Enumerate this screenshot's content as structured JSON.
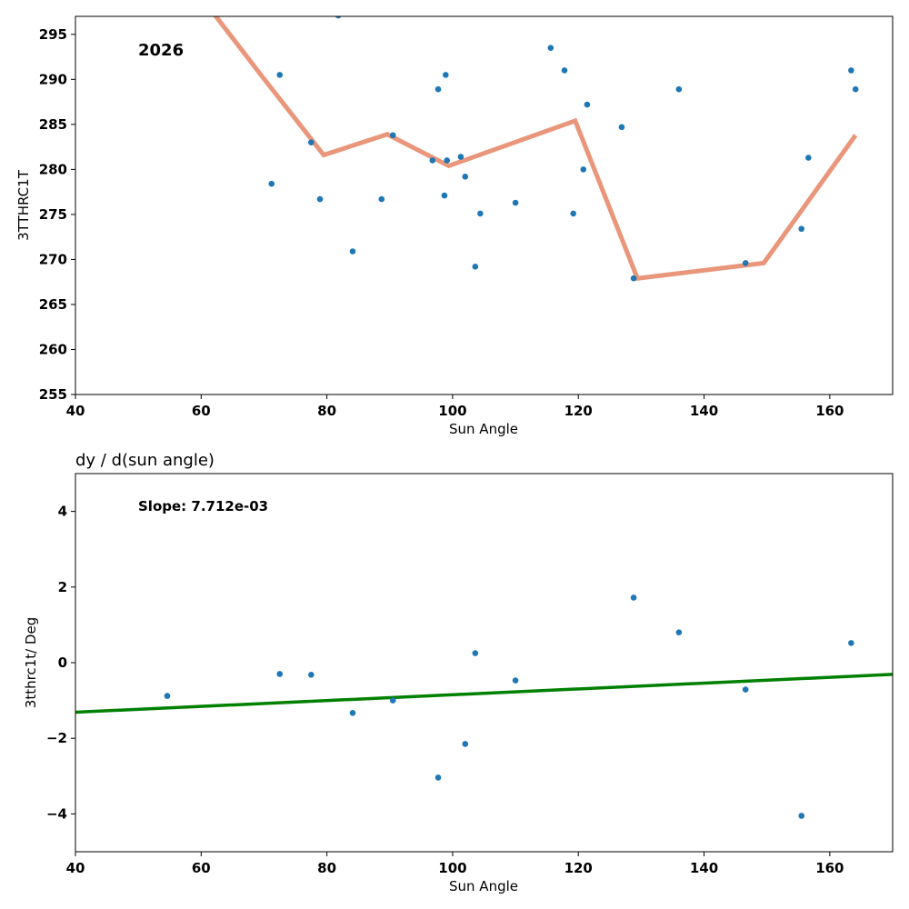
{
  "chart_data": [
    {
      "type": "scatter",
      "title": "",
      "annotation": "2026",
      "xlabel": "Sun Angle",
      "ylabel": "3TTHRC1T",
      "xlim": [
        40,
        170
      ],
      "ylim": [
        255,
        297
      ],
      "xticks": [
        40,
        60,
        80,
        100,
        120,
        140,
        160
      ],
      "yticks": [
        255,
        260,
        265,
        270,
        275,
        280,
        285,
        290,
        295
      ],
      "grid": false,
      "colors": {
        "points": "#1f77b4",
        "line": "#e9967a"
      },
      "points": {
        "x": [
          81.8,
          72.5,
          71.2,
          77.5,
          78.9,
          84.1,
          88.7,
          90.5,
          96.8,
          97.7,
          98.9,
          98.7,
          99.1,
          101.3,
          102.0,
          104.4,
          103.6,
          110.0,
          115.6,
          117.8,
          121.4,
          120.8,
          119.2,
          126.9,
          128.8,
          136.0,
          146.6,
          155.5,
          156.6,
          163.4,
          164.1
        ],
        "y": [
          297.1,
          290.5,
          278.4,
          283.0,
          276.7,
          270.9,
          276.7,
          283.8,
          281.0,
          288.9,
          290.5,
          277.1,
          281.0,
          281.4,
          279.2,
          275.1,
          269.2,
          276.3,
          293.5,
          291.0,
          287.2,
          280.0,
          275.1,
          284.7,
          267.9,
          288.9,
          269.6,
          273.4,
          281.3,
          291.0,
          288.9
        ]
      },
      "line": {
        "x": [
          59.6,
          69.5,
          79.5,
          89.6,
          99.4,
          119.5,
          129.4,
          149.5,
          164.1
        ],
        "y": [
          299.5,
          290.5,
          281.6,
          283.9,
          280.4,
          285.4,
          267.9,
          269.6,
          283.8
        ]
      }
    },
    {
      "type": "scatter",
      "title": "dy / d(sun angle)",
      "annotation": "Slope: 7.712e-03",
      "xlabel": "Sun Angle",
      "ylabel": "3tthrc1t/ Deg",
      "xlim": [
        40,
        170
      ],
      "ylim": [
        -5,
        5
      ],
      "xticks": [
        40,
        60,
        80,
        100,
        120,
        140,
        160
      ],
      "yticks": [
        -4,
        -2,
        0,
        2,
        4
      ],
      "ytick_labels": [
        "−4",
        "−2",
        "0",
        "2",
        "4"
      ],
      "grid": false,
      "colors": {
        "points": "#1f77b4",
        "line": "#008000"
      },
      "points": {
        "x": [
          54.6,
          72.5,
          77.5,
          84.1,
          90.5,
          97.7,
          102.0,
          103.6,
          110.0,
          128.8,
          136.0,
          146.6,
          155.5,
          163.4
        ],
        "y": [
          -0.88,
          -0.3,
          -0.32,
          -1.33,
          -1.0,
          -3.04,
          -2.15,
          0.25,
          -0.47,
          1.72,
          0.8,
          -0.71,
          -4.05,
          0.52
        ]
      },
      "line": {
        "x": [
          40,
          170
        ],
        "y": [
          -1.31,
          -0.31
        ]
      }
    }
  ]
}
